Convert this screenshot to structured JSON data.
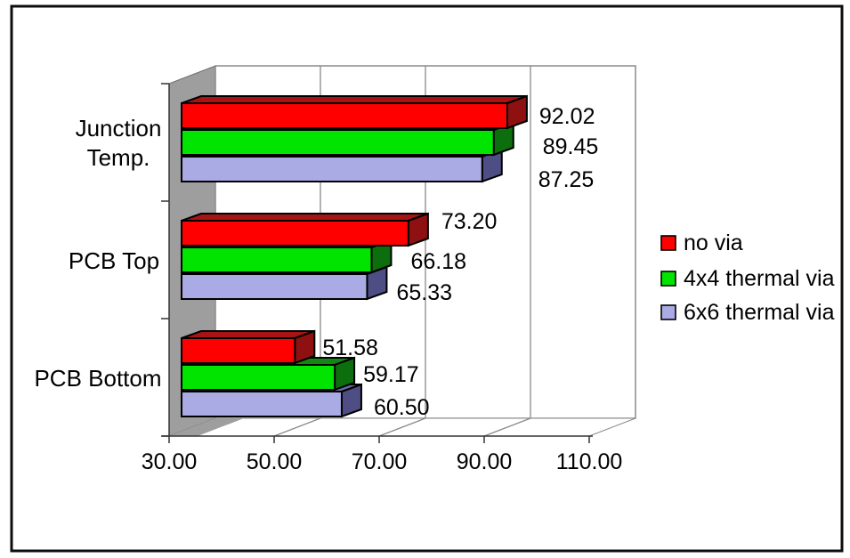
{
  "chart_data": {
    "type": "bar",
    "orientation": "horizontal",
    "style": "3d-clustered",
    "title": "",
    "xlabel": "",
    "ylabel": "",
    "categories": [
      "Junction Temp.",
      "PCB Top",
      "PCB Bottom"
    ],
    "category_label_lines": [
      [
        "Junction",
        "Temp."
      ],
      [
        "PCB Top"
      ],
      [
        "PCB Bottom"
      ]
    ],
    "series": [
      {
        "name": "no via",
        "color": "#FF0000",
        "top_color": "#A81414",
        "end_color": "#8F1010",
        "values": [
          92.02,
          73.2,
          51.58
        ],
        "labels": [
          "92.02",
          "73.20",
          "51.58"
        ]
      },
      {
        "name": "4x4 thermal via",
        "color": "#00E400",
        "top_color": "#128812",
        "end_color": "#0D6E0D",
        "values": [
          89.45,
          66.18,
          59.17
        ],
        "labels": [
          "89.45",
          "66.18",
          "59.17"
        ]
      },
      {
        "name": "6x6 thermal via",
        "color": "#AAAAE4",
        "top_color": "#6A6AA8",
        "end_color": "#4E4E84",
        "values": [
          87.25,
          65.33,
          60.5
        ],
        "labels": [
          "87.25",
          "65.33",
          "60.50"
        ]
      }
    ],
    "axis": {
      "min": 30,
      "max": 110,
      "ticks": [
        30,
        50,
        70,
        90,
        110
      ],
      "tick_labels": [
        "30.00",
        "50.00",
        "70.00",
        "90.00",
        "110.00"
      ]
    },
    "grid": true,
    "value_labels": true,
    "legend_position": "right",
    "wall_color": "#9E9E9E",
    "plot_background": "#FFFFFF",
    "gridline_color": "#8A8A8A",
    "outline_color": "#000000"
  }
}
